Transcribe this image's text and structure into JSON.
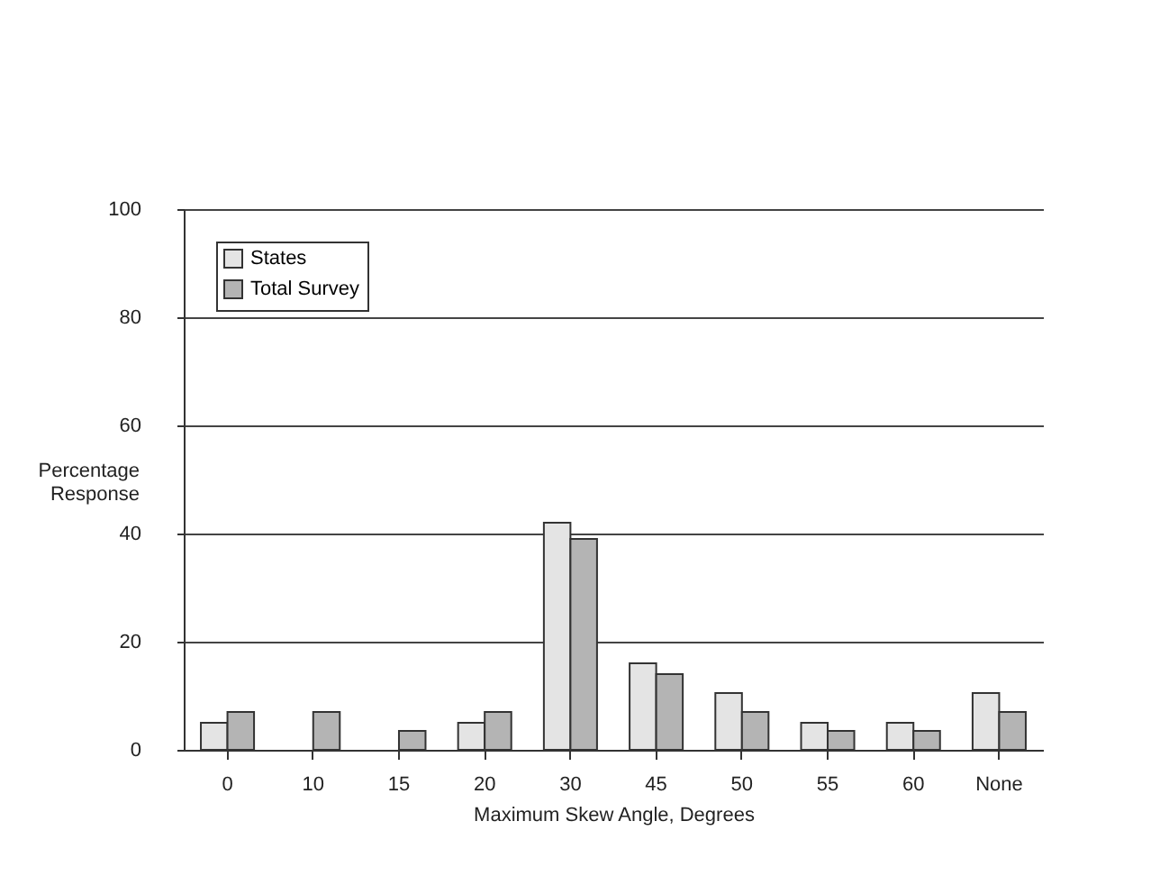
{
  "chart_data": {
    "type": "bar",
    "xlabel": "Maximum Skew Angle, Degrees",
    "ylabel": "Percentage Response",
    "categories": [
      "0",
      "10",
      "15",
      "20",
      "30",
      "45",
      "50",
      "55",
      "60",
      "None"
    ],
    "series": [
      {
        "name": "States",
        "color": "#e4e4e4",
        "values": [
          5,
          null,
          null,
          5,
          42,
          16,
          10.5,
          5,
          5,
          10.5
        ]
      },
      {
        "name": "Total Survey",
        "color": "#b4b4b4",
        "values": [
          7,
          7,
          3.5,
          7,
          39,
          14,
          7,
          3.5,
          3.5,
          7
        ]
      }
    ],
    "ylim": [
      0,
      100
    ],
    "yticks": [
      0,
      20,
      40,
      60,
      80,
      100
    ],
    "grid": "y",
    "legend": "top left"
  }
}
